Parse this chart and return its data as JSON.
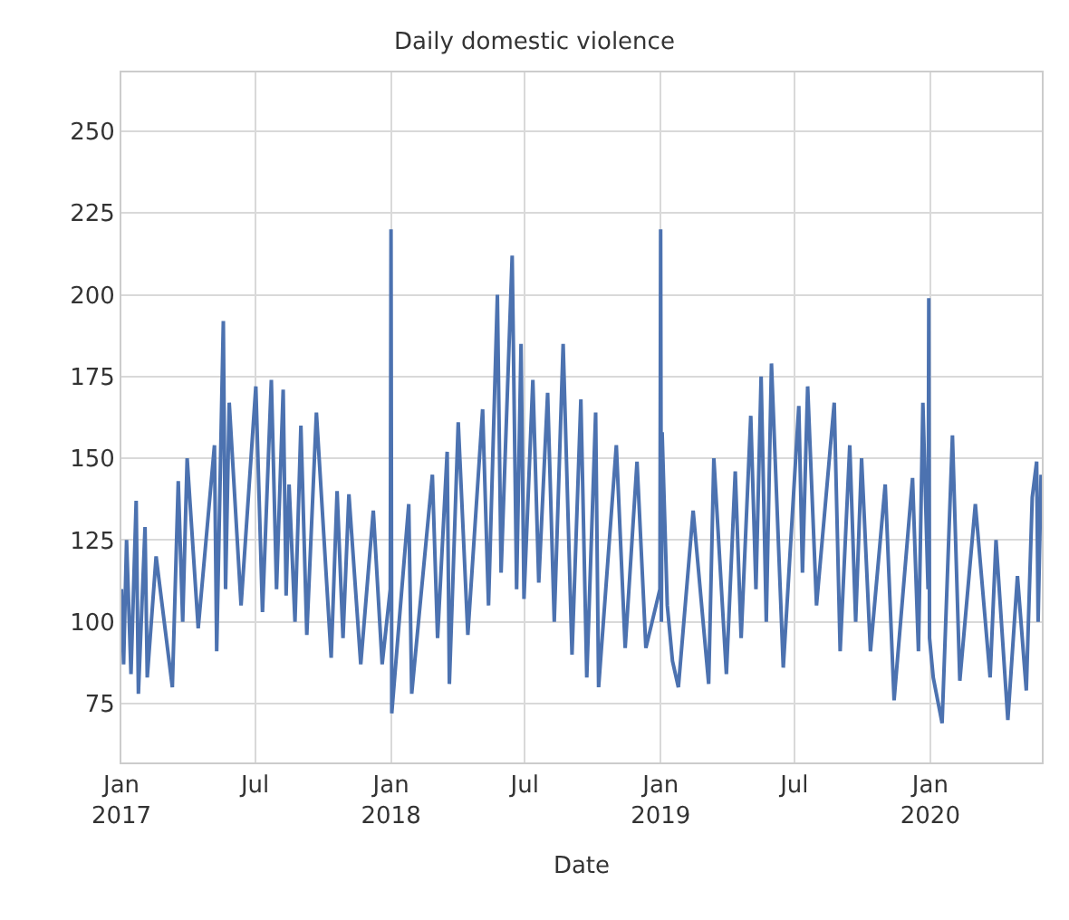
{
  "chart_data": {
    "type": "line",
    "title": "Daily domestic violence",
    "xlabel": "Date",
    "x": [
      "2017-01-01",
      "2017-01-04",
      "2017-01-08",
      "2017-01-14",
      "2017-01-21",
      "2017-01-24",
      "2017-02-02",
      "2017-02-05",
      "2017-02-17",
      "2017-03-11",
      "2017-03-19",
      "2017-03-25",
      "2017-03-31",
      "2017-04-15",
      "2017-05-07",
      "2017-05-10",
      "2017-05-19",
      "2017-05-22",
      "2017-05-27",
      "2017-06-12",
      "2017-07-02",
      "2017-07-11",
      "2017-07-23",
      "2017-07-30",
      "2017-08-08",
      "2017-08-12",
      "2017-08-16",
      "2017-08-24",
      "2017-09-01",
      "2017-09-09",
      "2017-09-22",
      "2017-10-12",
      "2017-10-20",
      "2017-10-28",
      "2017-11-05",
      "2017-11-21",
      "2017-12-08",
      "2017-12-20",
      "2017-12-31",
      "2018-01-01",
      "2018-01-02",
      "2018-01-12",
      "2018-01-25",
      "2018-01-29",
      "2018-02-26",
      "2018-03-05",
      "2018-03-18",
      "2018-03-21",
      "2018-04-02",
      "2018-04-15",
      "2018-05-05",
      "2018-05-13",
      "2018-05-25",
      "2018-05-30",
      "2018-06-14",
      "2018-06-20",
      "2018-06-26",
      "2018-06-30",
      "2018-07-12",
      "2018-07-20",
      "2018-08-01",
      "2018-08-10",
      "2018-08-22",
      "2018-09-03",
      "2018-09-15",
      "2018-09-23",
      "2018-10-05",
      "2018-10-09",
      "2018-11-02",
      "2018-11-14",
      "2018-11-30",
      "2018-12-12",
      "2018-12-31",
      "2019-01-01",
      "2019-01-02",
      "2019-01-03",
      "2019-01-10",
      "2019-01-17",
      "2019-01-25",
      "2019-02-14",
      "2019-03-07",
      "2019-03-14",
      "2019-03-31",
      "2019-04-12",
      "2019-04-20",
      "2019-05-03",
      "2019-05-10",
      "2019-05-17",
      "2019-05-24",
      "2019-05-31",
      "2019-06-16",
      "2019-07-07",
      "2019-07-12",
      "2019-07-19",
      "2019-07-31",
      "2019-08-24",
      "2019-09-01",
      "2019-09-14",
      "2019-09-22",
      "2019-09-30",
      "2019-10-12",
      "2019-11-01",
      "2019-11-13",
      "2019-12-08",
      "2019-12-16",
      "2019-12-22",
      "2019-12-29",
      "2019-12-30",
      "2019-12-31",
      "2020-01-05",
      "2020-01-17",
      "2020-01-31",
      "2020-02-10",
      "2020-03-02",
      "2020-03-22",
      "2020-03-30",
      "2020-04-15",
      "2020-04-28",
      "2020-05-10",
      "2020-05-18",
      "2020-05-24",
      "2020-05-26",
      "2020-05-30"
    ],
    "series": [
      {
        "color": "#4c72b0",
        "values": [
          110,
          87,
          125,
          84,
          137,
          78,
          129,
          83,
          120,
          80,
          143,
          100,
          150,
          98,
          154,
          91,
          192,
          110,
          167,
          105,
          172,
          103,
          174,
          110,
          171,
          108,
          142,
          100,
          160,
          96,
          164,
          89,
          140,
          95,
          139,
          87,
          134,
          87,
          110,
          220,
          72,
          100,
          136,
          78,
          145,
          95,
          152,
          81,
          161,
          96,
          165,
          105,
          200,
          115,
          212,
          110,
          185,
          107,
          174,
          112,
          170,
          100,
          185,
          90,
          168,
          83,
          164,
          80,
          154,
          92,
          149,
          92,
          110,
          220,
          100,
          158,
          105,
          88,
          80,
          134,
          81,
          150,
          84,
          146,
          95,
          163,
          110,
          175,
          100,
          179,
          86,
          166,
          115,
          172,
          105,
          167,
          91,
          154,
          100,
          150,
          91,
          142,
          76,
          144,
          91,
          167,
          110,
          199,
          95,
          83,
          69,
          157,
          82,
          136,
          83,
          125,
          70,
          114,
          79,
          138,
          149,
          100,
          145
        ]
      }
    ],
    "xlim": [
      "2017-01-01",
      "2020-05-31"
    ],
    "xticks": [
      {
        "value": "2017-01-01",
        "label": "Jan\n2017"
      },
      {
        "value": "2017-07-01",
        "label": "Jul"
      },
      {
        "value": "2018-01-01",
        "label": "Jan\n2018"
      },
      {
        "value": "2018-07-01",
        "label": "Jul"
      },
      {
        "value": "2019-01-01",
        "label": "Jan\n2019"
      },
      {
        "value": "2019-07-01",
        "label": "Jul"
      },
      {
        "value": "2020-01-01",
        "label": "Jan\n2020"
      }
    ],
    "ylim": [
      57,
      268
    ],
    "yticks": [
      75,
      100,
      125,
      150,
      175,
      200,
      225,
      250
    ],
    "grid": true,
    "line_style": "solid"
  }
}
